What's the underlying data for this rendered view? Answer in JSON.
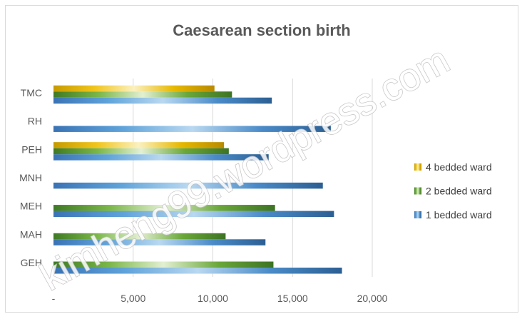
{
  "chart_data": {
    "type": "bar",
    "orientation": "horizontal",
    "title": "Caesarean section birth",
    "categories": [
      "GEH",
      "MAH",
      "MEH",
      "MNH",
      "PEH",
      "RH",
      "TMC"
    ],
    "series": [
      {
        "name": "1 bedded ward",
        "values": [
          18100,
          13300,
          17600,
          16900,
          13500,
          17400,
          13700
        ],
        "color": "#3b78b8"
      },
      {
        "name": "2 bedded ward",
        "values": [
          13800,
          10800,
          13900,
          null,
          11000,
          null,
          11200
        ],
        "color": "#4e8a2e"
      },
      {
        "name": "4 bedded ward",
        "values": [
          null,
          null,
          null,
          null,
          10700,
          null,
          10100
        ],
        "color": "#c9a000"
      }
    ],
    "x_ticks": [
      "-",
      "5,000",
      "10,000",
      "15,000",
      "20,000"
    ],
    "xlim": [
      0,
      20000
    ],
    "grid": true,
    "legend_position": "right",
    "legend_order": [
      "4 bedded ward",
      "2 bedded ward",
      "1 bedded ward"
    ]
  },
  "watermark": "kimheng99.wordpress.com"
}
